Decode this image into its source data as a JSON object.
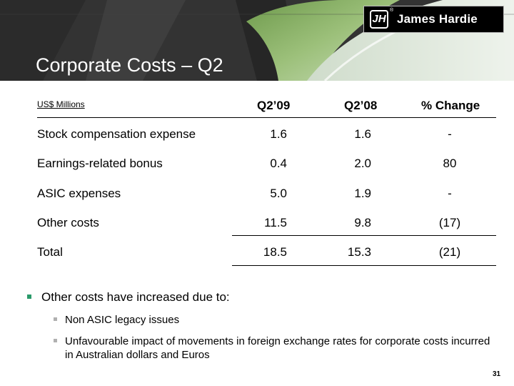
{
  "header": {
    "title": "Corporate Costs – Q2",
    "logo_text": "James Hardie",
    "logo_mark": "JH",
    "logo_reg": "®"
  },
  "table": {
    "units": "US$ Millions",
    "columns": [
      "Q2’09",
      "Q2’08",
      "% Change"
    ],
    "rows": [
      {
        "label": "Stock compensation expense",
        "q209": "1.6",
        "q208": "1.6",
        "change": "-"
      },
      {
        "label": "Earnings-related bonus",
        "q209": "0.4",
        "q208": "2.0",
        "change": "80"
      },
      {
        "label": "ASIC expenses",
        "q209": "5.0",
        "q208": "1.9",
        "change": "-"
      },
      {
        "label": "Other costs",
        "q209": "11.5",
        "q208": "9.8",
        "change": "(17)"
      },
      {
        "label": "Total",
        "q209": "18.5",
        "q208": "15.3",
        "change": "(21)"
      }
    ]
  },
  "bullets": {
    "main": "Other costs have increased due to:",
    "sub": [
      "Non ASIC legacy issues",
      "Unfavourable impact of movements in foreign exchange rates for corporate costs incurred in Australian dollars and Euros"
    ]
  },
  "page_number": "31",
  "colors": {
    "bullet_primary": "#2a9a6a",
    "bullet_secondary": "#b0b0b0"
  }
}
